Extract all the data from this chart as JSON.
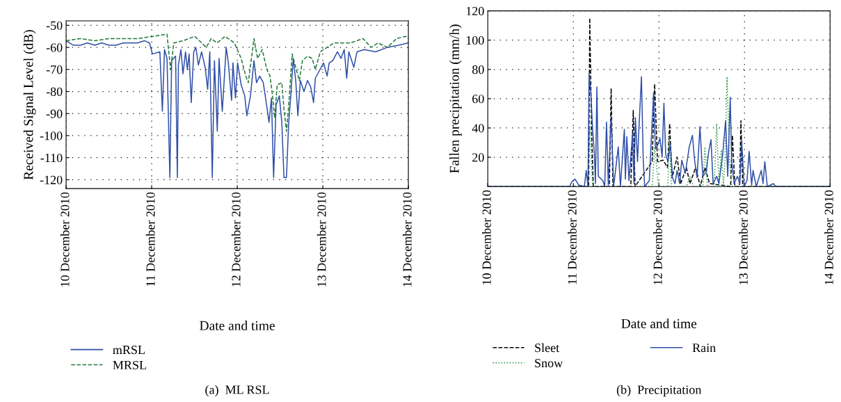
{
  "chart_data": [
    {
      "type": "line",
      "xlabel": "Date and time",
      "ylabel": "Received Signal Level (dB)",
      "xlim": [
        "2010-12-10",
        "2010-12-14"
      ],
      "ylim": [
        -124,
        -48
      ],
      "xticks": [
        {
          "value": "2010-12-10",
          "label": "10 December 2010"
        },
        {
          "value": "2010-12-11",
          "label": "11 December 2010"
        },
        {
          "value": "2010-12-12",
          "label": "12 December 2010"
        },
        {
          "value": "2010-12-13",
          "label": "13 December 2010"
        },
        {
          "value": "2010-12-14",
          "label": "14 December 2010"
        }
      ],
      "yticks": [
        -120,
        -110,
        -100,
        -90,
        -80,
        -70,
        -60,
        -50
      ],
      "grid": true,
      "legend": "bottom",
      "annotations": [
        "(a)  ML RSL"
      ],
      "series": [
        {
          "name": "mRSL",
          "color": "#2f4fa8",
          "line_style": "solid",
          "x": [
            "2010-12-10T00:00",
            "2010-12-10T02:00",
            "2010-12-10T04:00",
            "2010-12-10T06:00",
            "2010-12-10T08:00",
            "2010-12-10T10:00",
            "2010-12-10T12:00",
            "2010-12-10T14:00",
            "2010-12-10T16:00",
            "2010-12-10T18:00",
            "2010-12-10T20:00",
            "2010-12-10T22:00",
            "2010-12-10T23:24",
            "2010-12-11T00:12",
            "2010-12-11T02:18",
            "2010-12-11T03:00",
            "2010-12-11T03:36",
            "2010-12-11T04:18",
            "2010-12-11T05:06",
            "2010-12-11T05:36",
            "2010-12-11T06:42",
            "2010-12-11T07:12",
            "2010-12-11T07:30",
            "2010-12-11T08:12",
            "2010-12-11T08:48",
            "2010-12-11T09:30",
            "2010-12-11T10:00",
            "2010-12-11T10:30",
            "2010-12-11T11:06",
            "2010-12-11T11:48",
            "2010-12-11T12:24",
            "2010-12-11T13:06",
            "2010-12-11T14:00",
            "2010-12-11T15:00",
            "2010-12-11T15:42",
            "2010-12-11T16:18",
            "2010-12-11T17:00",
            "2010-12-11T17:36",
            "2010-12-11T18:24",
            "2010-12-11T18:54",
            "2010-12-11T19:48",
            "2010-12-11T20:54",
            "2010-12-11T21:30",
            "2010-12-11T22:24",
            "2010-12-11T22:48",
            "2010-12-11T23:30",
            "2010-12-12T00:06",
            "2010-12-12T01:06",
            "2010-12-12T02:06",
            "2010-12-12T02:42",
            "2010-12-12T03:42",
            "2010-12-12T04:42",
            "2010-12-12T05:24",
            "2010-12-12T06:18",
            "2010-12-12T07:18",
            "2010-12-12T08:24",
            "2010-12-12T08:54",
            "2010-12-12T09:36",
            "2010-12-12T10:12",
            "2010-12-12T10:54",
            "2010-12-12T11:48",
            "2010-12-12T12:30",
            "2010-12-12T13:06",
            "2010-12-12T13:48",
            "2010-12-12T14:24",
            "2010-12-12T15:06",
            "2010-12-12T15:42",
            "2010-12-12T16:24",
            "2010-12-12T17:00",
            "2010-12-12T17:42",
            "2010-12-12T18:42",
            "2010-12-12T19:42",
            "2010-12-12T20:36",
            "2010-12-12T21:24",
            "2010-12-12T21:54",
            "2010-12-12T22:54",
            "2010-12-13T00:12",
            "2010-12-13T01:12",
            "2010-12-13T01:48",
            "2010-12-13T02:48",
            "2010-12-13T04:06",
            "2010-12-13T05:06",
            "2010-12-13T06:00",
            "2010-12-13T06:42",
            "2010-12-13T07:18",
            "2010-12-13T08:42",
            "2010-12-13T09:36",
            "2010-12-13T11:36",
            "2010-12-13T14:48",
            "2010-12-13T18:06",
            "2010-12-13T21:18",
            "2010-12-13T23:54",
            "2010-12-14T00:00"
          ],
          "values": [
            -57,
            -59,
            -59,
            -58,
            -59,
            -58,
            -59,
            -59,
            -58,
            -58,
            -58,
            -57,
            -58,
            -63,
            -62,
            -89,
            -61,
            -65,
            -119,
            -66,
            -64,
            -119,
            -68,
            -61,
            -72,
            -62,
            -70,
            -63,
            -85,
            -62,
            -60,
            -68,
            -62,
            -69,
            -79,
            -62,
            -119,
            -66,
            -98,
            -65,
            -89,
            -60,
            -67,
            -84,
            -67,
            -83,
            -67,
            -77,
            -82,
            -91,
            -82,
            -66,
            -76,
            -73,
            -76,
            -88,
            -94,
            -83,
            -119,
            -86,
            -82,
            -94,
            -119,
            -119,
            -95,
            -80,
            -65,
            -75,
            -91,
            -75,
            -80,
            -75,
            -78,
            -85,
            -74,
            -71,
            -67,
            -73,
            -67,
            -66,
            -62,
            -65,
            -61,
            -74,
            -62,
            -69,
            -62,
            -61,
            -62,
            -60,
            -59,
            -58,
            -58
          ]
        },
        {
          "name": "MRSL",
          "color": "#1f7a3c",
          "line_style": "dashed",
          "x": [
            "2010-12-10T00:00",
            "2010-12-10T04:00",
            "2010-12-10T08:00",
            "2010-12-10T12:00",
            "2010-12-10T16:00",
            "2010-12-10T20:00",
            "2010-12-11T00:30",
            "2010-12-11T04:18",
            "2010-12-11T05:18",
            "2010-12-11T06:12",
            "2010-12-11T08:48",
            "2010-12-11T12:06",
            "2010-12-11T15:18",
            "2010-12-11T16:42",
            "2010-12-11T18:18",
            "2010-12-11T20:36",
            "2010-12-11T23:12",
            "2010-12-12T01:06",
            "2010-12-12T02:24",
            "2010-12-12T03:06",
            "2010-12-12T04:42",
            "2010-12-12T05:42",
            "2010-12-12T07:00",
            "2010-12-12T08:18",
            "2010-12-12T09:12",
            "2010-12-12T09:54",
            "2010-12-12T10:30",
            "2010-12-12T11:12",
            "2010-12-12T12:30",
            "2010-12-12T13:06",
            "2010-12-12T13:48",
            "2010-12-12T14:24",
            "2010-12-12T15:24",
            "2010-12-12T16:24",
            "2010-12-12T17:24",
            "2010-12-12T18:18",
            "2010-12-12T19:42",
            "2010-12-12T21:00",
            "2010-12-12T21:54",
            "2010-12-12T23:18",
            "2010-12-13T01:12",
            "2010-12-13T03:06",
            "2010-12-13T05:06",
            "2010-12-13T07:42",
            "2010-12-13T11:18",
            "2010-12-13T13:30",
            "2010-12-13T15:30",
            "2010-12-13T18:06",
            "2010-12-13T20:42",
            "2010-12-13T23:18",
            "2010-12-14T00:00"
          ],
          "values": [
            -57,
            -56,
            -57,
            -56,
            -56,
            -56,
            -55,
            -54,
            -70,
            -58,
            -57,
            -55,
            -60,
            -56,
            -58,
            -55,
            -58,
            -65,
            -73,
            -76,
            -56,
            -65,
            -61,
            -70,
            -73,
            -82,
            -92,
            -77,
            -76,
            -88,
            -98,
            -87,
            -63,
            -69,
            -75,
            -66,
            -64,
            -65,
            -70,
            -62,
            -60,
            -58,
            -58,
            -58,
            -56,
            -60,
            -58,
            -60,
            -56,
            -55,
            -56
          ]
        }
      ]
    },
    {
      "type": "line",
      "xlabel": "Date and time",
      "ylabel": "Fallen precipitation (mm/h)",
      "xlim": [
        "2010-12-10",
        "2010-12-14"
      ],
      "ylim": [
        0,
        120
      ],
      "xticks": [
        {
          "value": "2010-12-10",
          "label": "10 December 2010"
        },
        {
          "value": "2010-12-11",
          "label": "11 December 2010"
        },
        {
          "value": "2010-12-12",
          "label": "12 December 2010"
        },
        {
          "value": "2010-12-13",
          "label": "13 December 2010"
        },
        {
          "value": "2010-12-14",
          "label": "14 December 2010"
        }
      ],
      "yticks": [
        20,
        40,
        60,
        80,
        100,
        120
      ],
      "grid": true,
      "legend": "bottom",
      "annotations": [
        "(b)  Precipitation"
      ],
      "series": [
        {
          "name": "Sleet",
          "color": "#000000",
          "line_style": "dashed",
          "x": [
            "2010-12-10T00:00",
            "2010-12-11T04:18",
            "2010-12-11T04:36",
            "2010-12-11T05:06",
            "2010-12-11T05:36",
            "2010-12-11T10:06",
            "2010-12-11T10:36",
            "2010-12-11T11:06",
            "2010-12-11T16:06",
            "2010-12-11T16:48",
            "2010-12-11T17:18",
            "2010-12-11T22:06",
            "2010-12-11T22:48",
            "2010-12-11T23:36",
            "2010-12-12T01:12",
            "2010-12-12T02:24",
            "2010-12-12T03:00",
            "2010-12-12T03:42",
            "2010-12-12T05:06",
            "2010-12-12T06:06",
            "2010-12-12T07:42",
            "2010-12-12T08:42",
            "2010-12-12T10:18",
            "2010-12-12T11:36",
            "2010-12-12T12:54",
            "2010-12-12T14:12",
            "2010-12-12T20:06",
            "2010-12-12T20:36",
            "2010-12-12T21:18",
            "2010-12-12T22:36",
            "2010-12-12T23:00",
            "2010-12-12T23:30",
            "2010-12-14T00:00"
          ],
          "values": [
            0,
            0,
            115,
            39,
            0,
            0,
            67,
            0,
            0,
            52,
            0,
            17,
            70,
            17,
            18,
            13,
            43,
            6,
            20,
            2,
            13,
            2,
            13,
            0,
            13,
            2,
            0,
            35,
            0,
            0,
            45,
            0,
            0
          ]
        },
        {
          "name": "Snow",
          "color": "#2e9a4e",
          "line_style": "dotted",
          "x": [
            "2010-12-10T00:00",
            "2010-12-11T04:06",
            "2010-12-11T04:36",
            "2010-12-11T05:24",
            "2010-12-11T22:06",
            "2010-12-11T22:48",
            "2010-12-11T23:54",
            "2010-12-12T02:30",
            "2010-12-12T02:54",
            "2010-12-12T03:30",
            "2010-12-12T07:42",
            "2010-12-12T08:42",
            "2010-12-12T09:42",
            "2010-12-12T12:18",
            "2010-12-12T12:54",
            "2010-12-12T13:36",
            "2010-12-12T15:30",
            "2010-12-12T16:12",
            "2010-12-12T16:48",
            "2010-12-12T17:30",
            "2010-12-12T18:06",
            "2010-12-12T18:30",
            "2010-12-12T19:06",
            "2010-12-12T19:48",
            "2010-12-12T20:24",
            "2010-12-14T00:00"
          ],
          "values": [
            0,
            0,
            41,
            0,
            0,
            27,
            0,
            0,
            34,
            0,
            0,
            7,
            0,
            0,
            27,
            0,
            0,
            43,
            0,
            25,
            0,
            17,
            75,
            18,
            0,
            0
          ]
        },
        {
          "name": "Rain",
          "color": "#2f4fa8",
          "line_style": "solid",
          "x": [
            "2010-12-10T00:00",
            "2010-12-10T23:00",
            "2010-12-10T23:30",
            "2010-12-11T00:30",
            "2010-12-11T01:30",
            "2010-12-11T03:06",
            "2010-12-11T03:36",
            "2010-12-11T04:06",
            "2010-12-11T04:24",
            "2010-12-11T04:54",
            "2010-12-11T05:24",
            "2010-12-11T05:54",
            "2010-12-11T06:12",
            "2010-12-11T06:36",
            "2010-12-11T07:00",
            "2010-12-11T08:18",
            "2010-12-11T08:48",
            "2010-12-11T09:18",
            "2010-12-11T09:48",
            "2010-12-11T10:36",
            "2010-12-11T11:18",
            "2010-12-11T12:36",
            "2010-12-11T13:12",
            "2010-12-11T14:18",
            "2010-12-11T14:36",
            "2010-12-11T15:00",
            "2010-12-11T15:36",
            "2010-12-11T16:36",
            "2010-12-11T17:00",
            "2010-12-11T17:24",
            "2010-12-11T18:00",
            "2010-12-11T18:24",
            "2010-12-11T19:06",
            "2010-12-11T19:36",
            "2010-12-11T20:00",
            "2010-12-11T21:18",
            "2010-12-11T22:30",
            "2010-12-11T23:00",
            "2010-12-11T23:36",
            "2010-12-12T00:18",
            "2010-12-12T00:54",
            "2010-12-12T01:24",
            "2010-12-12T01:54",
            "2010-12-12T02:30",
            "2010-12-12T03:12",
            "2010-12-12T03:48",
            "2010-12-12T04:30",
            "2010-12-12T05:06",
            "2010-12-12T05:48",
            "2010-12-12T06:24",
            "2010-12-12T07:24",
            "2010-12-12T08:30",
            "2010-12-12T09:24",
            "2010-12-12T10:00",
            "2010-12-12T10:42",
            "2010-12-12T11:30",
            "2010-12-12T12:18",
            "2010-12-12T13:18",
            "2010-12-12T13:54",
            "2010-12-12T14:36",
            "2010-12-12T15:12",
            "2010-12-12T16:12",
            "2010-12-12T16:48",
            "2010-12-12T17:48",
            "2010-12-12T18:42",
            "2010-12-12T19:18",
            "2010-12-12T20:00",
            "2010-12-12T20:24",
            "2010-12-12T21:06",
            "2010-12-12T22:00",
            "2010-12-12T22:42",
            "2010-12-12T23:12",
            "2010-12-12T23:54",
            "2010-12-13T00:42",
            "2010-12-13T01:18",
            "2010-12-13T02:00",
            "2010-12-13T02:24",
            "2010-12-13T03:18",
            "2010-12-13T04:42",
            "2010-12-13T05:12",
            "2010-12-13T05:42",
            "2010-12-13T06:24",
            "2010-12-13T08:06",
            "2010-12-13T08:48",
            "2010-12-14T00:00"
          ],
          "values": [
            0,
            0,
            3,
            5,
            1,
            0,
            11,
            0,
            77,
            64,
            39,
            22,
            2,
            68,
            7,
            4,
            0,
            44,
            1,
            48,
            0,
            27,
            0,
            39,
            5,
            34,
            4,
            36,
            2,
            47,
            17,
            40,
            75,
            18,
            0,
            4,
            64,
            26,
            28,
            33,
            20,
            57,
            22,
            17,
            29,
            6,
            2,
            11,
            2,
            18,
            9,
            27,
            35,
            18,
            6,
            41,
            7,
            10,
            23,
            32,
            2,
            7,
            2,
            20,
            45,
            7,
            61,
            17,
            2,
            7,
            2,
            32,
            0,
            4,
            24,
            1,
            11,
            0,
            11,
            2,
            17,
            0,
            2,
            0,
            0
          ]
        }
      ]
    }
  ]
}
